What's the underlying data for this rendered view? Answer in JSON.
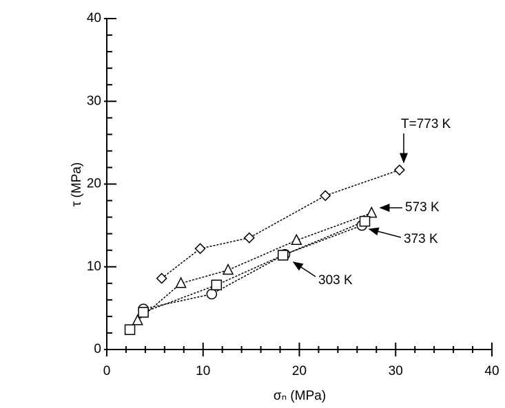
{
  "chart_data": {
    "type": "line",
    "x_label": "σₙ (MPa)",
    "y_label": "τ (MPa)",
    "xlim": [
      0,
      40
    ],
    "xticks": [
      0,
      10,
      20,
      30,
      40
    ],
    "ylim": [
      0,
      40
    ],
    "yticks": [
      0,
      10,
      20,
      30,
      40
    ],
    "grid": false,
    "series": [
      {
        "name": "T=773 K",
        "marker": "diamond",
        "color": "#000000",
        "x": [
          5.7,
          9.7,
          14.8,
          22.7,
          30.4
        ],
        "values": [
          8.6,
          12.2,
          13.5,
          18.6,
          21.7
        ]
      },
      {
        "name": "573 K",
        "marker": "triangle",
        "color": "#000000",
        "x": [
          3.2,
          7.7,
          12.6,
          19.7,
          27.5
        ],
        "values": [
          3.5,
          8.0,
          9.6,
          13.2,
          16.5
        ]
      },
      {
        "name": "373 K",
        "marker": "circle",
        "color": "#000000",
        "x": [
          3.8,
          10.9,
          18.5,
          26.5
        ],
        "values": [
          4.9,
          6.7,
          11.5,
          15.0
        ]
      },
      {
        "name": "303 K",
        "marker": "square",
        "color": "#000000",
        "x": [
          2.4,
          3.8,
          11.4,
          18.3,
          26.8
        ],
        "values": [
          2.4,
          4.5,
          7.8,
          11.4,
          15.5
        ]
      }
    ]
  }
}
